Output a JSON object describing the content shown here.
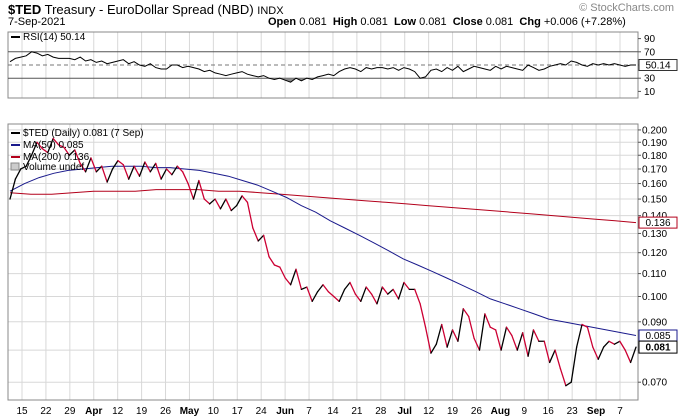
{
  "header": {
    "symbol": "$TED",
    "name": "Treasury - EuroDollar Spread (NBD)",
    "exchange": "INDX",
    "date": "7-Sep-2021",
    "brand": "© StockCharts.com",
    "open_label": "Open",
    "open": "0.081",
    "high_label": "High",
    "high": "0.081",
    "low_label": "Low",
    "low": "0.081",
    "close_label": "Close",
    "close": "0.081",
    "chg_label": "Chg",
    "chg": "+0.006 (+7.28%)"
  },
  "rsi_panel": {
    "legend": "RSI(14) 50.14",
    "current_tag": "50.14",
    "ticks": [
      "90",
      "70",
      "50",
      "30",
      "10"
    ],
    "levels": [
      90,
      70,
      50,
      30,
      10
    ],
    "overbought": 70,
    "oversold": 30
  },
  "legend": {
    "price": "$TED (Daily) 0.081 (7 Sep)",
    "ma50": "MA(50) 0.085",
    "ma200": "MA(200) 0.136",
    "volume": "Volume undef"
  },
  "tags": {
    "price": "0.081",
    "ma50": "0.085",
    "ma200": "0.136"
  },
  "colors": {
    "up": "#000000",
    "down": "#cc0033",
    "ma50": "#1a1a8c",
    "ma200": "#b3001b",
    "grid": "#d8d8d8"
  },
  "chart_data": [
    {
      "type": "line",
      "title": "$TED Treasury - EuroDollar Spread (NBD) INDX",
      "x_ticks": [
        "15",
        "22",
        "29",
        "Apr",
        "12",
        "19",
        "26",
        "May",
        "10",
        "17",
        "24",
        "Jun",
        "7",
        "14",
        "21",
        "28",
        "Jul",
        "12",
        "19",
        "26",
        "Aug",
        "9",
        "16",
        "23",
        "Sep",
        "7"
      ],
      "y_ticks": [
        "0.200",
        "0.190",
        "0.180",
        "0.170",
        "0.160",
        "0.150",
        "0.140",
        "0.130",
        "0.120",
        "0.110",
        "0.100",
        "0.090",
        "0.080",
        "0.070"
      ],
      "y_scale": "log",
      "ylim": [
        0.065,
        0.205
      ],
      "grid": true,
      "legend_position": "top-left",
      "series": [
        {
          "name": "$TED (Daily)",
          "x_range": [
            "2021-03-12",
            "2021-09-07"
          ],
          "values": [
            0.15,
            0.163,
            0.17,
            0.172,
            0.18,
            0.19,
            0.185,
            0.182,
            0.193,
            0.188,
            0.186,
            0.18,
            0.184,
            0.174,
            0.168,
            0.178,
            0.168,
            0.172,
            0.161,
            0.17,
            0.176,
            0.173,
            0.163,
            0.172,
            0.165,
            0.175,
            0.168,
            0.174,
            0.163,
            0.17,
            0.166,
            0.172,
            0.168,
            0.16,
            0.15,
            0.162,
            0.15,
            0.147,
            0.15,
            0.144,
            0.15,
            0.143,
            0.146,
            0.152,
            0.148,
            0.133,
            0.126,
            0.129,
            0.118,
            0.114,
            0.113,
            0.108,
            0.105,
            0.112,
            0.103,
            0.104,
            0.098,
            0.102,
            0.105,
            0.102,
            0.1,
            0.098,
            0.103,
            0.106,
            0.101,
            0.098,
            0.104,
            0.101,
            0.097,
            0.104,
            0.101,
            0.103,
            0.099,
            0.106,
            0.103,
            0.103,
            0.097,
            0.088,
            0.079,
            0.082,
            0.089,
            0.081,
            0.087,
            0.083,
            0.095,
            0.092,
            0.084,
            0.08,
            0.093,
            0.088,
            0.087,
            0.08,
            0.088,
            0.085,
            0.08,
            0.086,
            0.078,
            0.087,
            0.083,
            0.083,
            0.076,
            0.08,
            0.074,
            0.069,
            0.07,
            0.081,
            0.089,
            0.088,
            0.081,
            0.077,
            0.081,
            0.083,
            0.082,
            0.083,
            0.08,
            0.076,
            0.081
          ]
        },
        {
          "name": "MA(50)",
          "x_range": [
            "2021-03-12",
            "2021-09-07"
          ],
          "values": [
            0.155,
            0.16,
            0.164,
            0.167,
            0.169,
            0.17,
            0.171,
            0.172,
            0.172,
            0.172,
            0.171,
            0.171,
            0.17,
            0.169,
            0.167,
            0.165,
            0.162,
            0.159,
            0.155,
            0.151,
            0.146,
            0.142,
            0.137,
            0.133,
            0.129,
            0.125,
            0.121,
            0.117,
            0.114,
            0.111,
            0.108,
            0.105,
            0.102,
            0.099,
            0.097,
            0.095,
            0.093,
            0.091,
            0.09,
            0.089,
            0.088,
            0.087,
            0.086,
            0.085
          ]
        },
        {
          "name": "MA(200)",
          "x_range": [
            "2021-03-12",
            "2021-09-07"
          ],
          "values": [
            0.154,
            0.153,
            0.153,
            0.154,
            0.155,
            0.155,
            0.155,
            0.156,
            0.156,
            0.156,
            0.155,
            0.155,
            0.154,
            0.153,
            0.152,
            0.151,
            0.15,
            0.149,
            0.148,
            0.147,
            0.146,
            0.145,
            0.144,
            0.143,
            0.142,
            0.141,
            0.14,
            0.139,
            0.138,
            0.137,
            0.136
          ]
        }
      ]
    },
    {
      "type": "line",
      "title": "RSI(14) 50.14",
      "ylim": [
        0,
        100
      ],
      "y_ticks": [
        "90",
        "70",
        "50",
        "30",
        "10"
      ],
      "series": [
        {
          "name": "RSI(14)",
          "x_range": [
            "2021-03-12",
            "2021-09-07"
          ],
          "values": [
            55,
            60,
            62,
            64,
            70,
            68,
            64,
            66,
            62,
            60,
            60,
            60,
            58,
            62,
            56,
            58,
            54,
            56,
            52,
            54,
            56,
            58,
            52,
            55,
            50,
            48,
            52,
            46,
            44,
            44,
            50,
            50,
            46,
            48,
            46,
            44,
            40,
            42,
            38,
            36,
            34,
            36,
            38,
            40,
            36,
            34,
            32,
            34,
            30,
            28,
            30,
            27,
            24,
            30,
            26,
            30,
            28,
            32,
            34,
            36,
            34,
            40,
            44,
            46,
            44,
            40,
            46,
            44,
            46,
            46,
            44,
            46,
            42,
            46,
            44,
            40,
            30,
            32,
            42,
            44,
            40,
            46,
            42,
            48,
            40,
            44,
            48,
            46,
            44,
            42,
            48,
            44,
            48,
            46,
            44,
            42,
            50,
            46,
            42,
            44,
            48,
            50,
            52,
            50,
            56,
            54,
            50,
            48,
            52,
            50,
            52,
            50,
            52,
            50,
            48,
            50,
            50
          ]
        }
      ]
    }
  ]
}
